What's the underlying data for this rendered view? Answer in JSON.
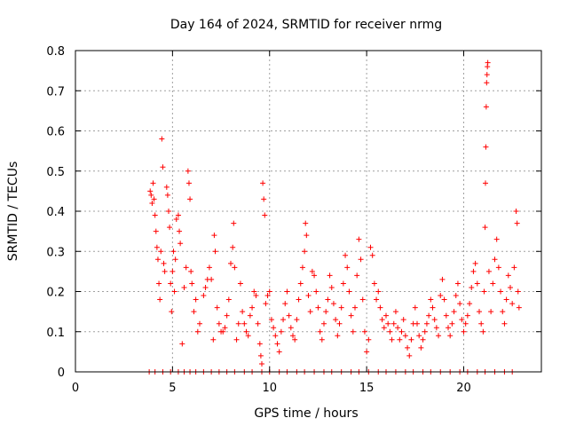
{
  "chart_data": {
    "type": "scatter",
    "title": "Day 164 of 2024, SRMTID for receiver nrmg",
    "xlabel": "GPS time / hours",
    "ylabel": "SRMTID / TECUs",
    "xlim": [
      0,
      24
    ],
    "ylim": [
      0,
      0.8
    ],
    "xticks": [
      "0",
      "5",
      "10",
      "15",
      "20"
    ],
    "xtick_values": [
      0,
      5,
      10,
      15,
      20
    ],
    "yticks": [
      "0",
      "0.1",
      "0.2",
      "0.3",
      "0.4",
      "0.5",
      "0.6",
      "0.7",
      "0.8"
    ],
    "ytick_values": [
      0,
      0.1,
      0.2,
      0.3,
      0.4,
      0.5,
      0.6,
      0.7,
      0.8
    ],
    "grid": true,
    "marker": "+",
    "series": [
      {
        "name": "SRMTID",
        "color": "#ff0000",
        "points": [
          [
            3.85,
            0.45
          ],
          [
            3.9,
            0.44
          ],
          [
            3.95,
            0.42
          ],
          [
            4.0,
            0.47
          ],
          [
            4.05,
            0.43
          ],
          [
            4.1,
            0.39
          ],
          [
            4.15,
            0.35
          ],
          [
            4.2,
            0.31
          ],
          [
            4.25,
            0.28
          ],
          [
            4.3,
            0.22
          ],
          [
            4.35,
            0.18
          ],
          [
            4.4,
            0.3
          ],
          [
            4.45,
            0.58
          ],
          [
            4.5,
            0.51
          ],
          [
            4.55,
            0.27
          ],
          [
            4.6,
            0.25
          ],
          [
            4.7,
            0.46
          ],
          [
            4.75,
            0.44
          ],
          [
            4.8,
            0.4
          ],
          [
            4.85,
            0.36
          ],
          [
            4.9,
            0.22
          ],
          [
            4.95,
            0.15
          ],
          [
            5.0,
            0.25
          ],
          [
            5.05,
            0.3
          ],
          [
            5.1,
            0.2
          ],
          [
            5.15,
            0.28
          ],
          [
            5.2,
            0.38
          ],
          [
            5.3,
            0.39
          ],
          [
            5.35,
            0.35
          ],
          [
            5.4,
            0.32
          ],
          [
            5.5,
            0.07
          ],
          [
            5.6,
            0.21
          ],
          [
            5.7,
            0.26
          ],
          [
            5.8,
            0.5
          ],
          [
            5.85,
            0.47
          ],
          [
            5.9,
            0.43
          ],
          [
            5.95,
            0.25
          ],
          [
            6.0,
            0.22
          ],
          [
            6.1,
            0.15
          ],
          [
            6.2,
            0.18
          ],
          [
            6.3,
            0.1
          ],
          [
            6.4,
            0.12
          ],
          [
            6.6,
            0.19
          ],
          [
            6.7,
            0.21
          ],
          [
            6.8,
            0.23
          ],
          [
            6.9,
            0.26
          ],
          [
            7.0,
            0.23
          ],
          [
            7.1,
            0.08
          ],
          [
            7.15,
            0.34
          ],
          [
            7.2,
            0.3
          ],
          [
            7.3,
            0.16
          ],
          [
            7.4,
            0.12
          ],
          [
            7.5,
            0.1
          ],
          [
            7.6,
            0.1
          ],
          [
            7.7,
            0.11
          ],
          [
            7.8,
            0.14
          ],
          [
            7.9,
            0.18
          ],
          [
            8.0,
            0.27
          ],
          [
            8.1,
            0.31
          ],
          [
            8.15,
            0.37
          ],
          [
            8.2,
            0.26
          ],
          [
            8.3,
            0.08
          ],
          [
            8.4,
            0.12
          ],
          [
            8.5,
            0.22
          ],
          [
            8.6,
            0.15
          ],
          [
            8.7,
            0.12
          ],
          [
            8.8,
            0.1
          ],
          [
            8.9,
            0.09
          ],
          [
            9.0,
            0.14
          ],
          [
            9.1,
            0.16
          ],
          [
            9.2,
            0.2
          ],
          [
            9.3,
            0.19
          ],
          [
            9.4,
            0.12
          ],
          [
            9.5,
            0.07
          ],
          [
            9.55,
            0.04
          ],
          [
            9.6,
            0.02
          ],
          [
            9.65,
            0.47
          ],
          [
            9.7,
            0.43
          ],
          [
            9.75,
            0.39
          ],
          [
            9.8,
            0.17
          ],
          [
            9.9,
            0.19
          ],
          [
            10.0,
            0.2
          ],
          [
            10.1,
            0.13
          ],
          [
            10.2,
            0.11
          ],
          [
            10.3,
            0.09
          ],
          [
            10.4,
            0.07
          ],
          [
            10.5,
            0.05
          ],
          [
            10.6,
            0.1
          ],
          [
            10.7,
            0.13
          ],
          [
            10.8,
            0.17
          ],
          [
            10.9,
            0.2
          ],
          [
            11.0,
            0.14
          ],
          [
            11.1,
            0.11
          ],
          [
            11.2,
            0.09
          ],
          [
            11.3,
            0.08
          ],
          [
            11.4,
            0.13
          ],
          [
            11.5,
            0.18
          ],
          [
            11.6,
            0.22
          ],
          [
            11.7,
            0.26
          ],
          [
            11.8,
            0.3
          ],
          [
            11.85,
            0.37
          ],
          [
            11.9,
            0.34
          ],
          [
            12.0,
            0.19
          ],
          [
            12.1,
            0.15
          ],
          [
            12.2,
            0.25
          ],
          [
            12.3,
            0.24
          ],
          [
            12.4,
            0.2
          ],
          [
            12.5,
            0.16
          ],
          [
            12.6,
            0.1
          ],
          [
            12.7,
            0.08
          ],
          [
            12.8,
            0.12
          ],
          [
            12.9,
            0.15
          ],
          [
            13.0,
            0.18
          ],
          [
            13.1,
            0.24
          ],
          [
            13.2,
            0.21
          ],
          [
            13.3,
            0.17
          ],
          [
            13.4,
            0.13
          ],
          [
            13.5,
            0.09
          ],
          [
            13.6,
            0.12
          ],
          [
            13.7,
            0.16
          ],
          [
            13.8,
            0.22
          ],
          [
            13.9,
            0.29
          ],
          [
            14.0,
            0.26
          ],
          [
            14.1,
            0.2
          ],
          [
            14.2,
            0.14
          ],
          [
            14.3,
            0.1
          ],
          [
            14.4,
            0.16
          ],
          [
            14.5,
            0.24
          ],
          [
            14.6,
            0.33
          ],
          [
            14.7,
            0.28
          ],
          [
            14.8,
            0.18
          ],
          [
            14.9,
            0.1
          ],
          [
            15.0,
            0.05
          ],
          [
            15.1,
            0.08
          ],
          [
            15.2,
            0.31
          ],
          [
            15.3,
            0.29
          ],
          [
            15.4,
            0.22
          ],
          [
            15.5,
            0.18
          ],
          [
            15.6,
            0.2
          ],
          [
            15.7,
            0.16
          ],
          [
            15.8,
            0.13
          ],
          [
            15.9,
            0.11
          ],
          [
            16.0,
            0.14
          ],
          [
            16.1,
            0.12
          ],
          [
            16.2,
            0.1
          ],
          [
            16.3,
            0.08
          ],
          [
            16.4,
            0.12
          ],
          [
            16.5,
            0.15
          ],
          [
            16.6,
            0.11
          ],
          [
            16.7,
            0.08
          ],
          [
            16.8,
            0.1
          ],
          [
            16.9,
            0.13
          ],
          [
            17.0,
            0.09
          ],
          [
            17.1,
            0.06
          ],
          [
            17.2,
            0.04
          ],
          [
            17.3,
            0.08
          ],
          [
            17.4,
            0.12
          ],
          [
            17.5,
            0.16
          ],
          [
            17.6,
            0.12
          ],
          [
            17.7,
            0.09
          ],
          [
            17.8,
            0.06
          ],
          [
            17.9,
            0.08
          ],
          [
            18.0,
            0.1
          ],
          [
            18.1,
            0.12
          ],
          [
            18.2,
            0.14
          ],
          [
            18.3,
            0.18
          ],
          [
            18.4,
            0.16
          ],
          [
            18.5,
            0.13
          ],
          [
            18.6,
            0.11
          ],
          [
            18.7,
            0.09
          ],
          [
            18.8,
            0.19
          ],
          [
            18.9,
            0.23
          ],
          [
            19.0,
            0.18
          ],
          [
            19.1,
            0.14
          ],
          [
            19.2,
            0.11
          ],
          [
            19.3,
            0.09
          ],
          [
            19.4,
            0.12
          ],
          [
            19.5,
            0.15
          ],
          [
            19.6,
            0.19
          ],
          [
            19.7,
            0.22
          ],
          [
            19.8,
            0.17
          ],
          [
            19.9,
            0.13
          ],
          [
            20.0,
            0.1
          ],
          [
            20.1,
            0.12
          ],
          [
            20.2,
            0.14
          ],
          [
            20.3,
            0.17
          ],
          [
            20.4,
            0.21
          ],
          [
            20.5,
            0.25
          ],
          [
            20.6,
            0.27
          ],
          [
            20.7,
            0.22
          ],
          [
            20.8,
            0.15
          ],
          [
            20.9,
            0.12
          ],
          [
            21.0,
            0.1
          ],
          [
            21.05,
            0.2
          ],
          [
            21.1,
            0.36
          ],
          [
            21.12,
            0.47
          ],
          [
            21.14,
            0.56
          ],
          [
            21.16,
            0.66
          ],
          [
            21.18,
            0.72
          ],
          [
            21.2,
            0.74
          ],
          [
            21.22,
            0.76
          ],
          [
            21.24,
            0.77
          ],
          [
            21.3,
            0.25
          ],
          [
            21.4,
            0.15
          ],
          [
            21.5,
            0.22
          ],
          [
            21.6,
            0.28
          ],
          [
            21.7,
            0.33
          ],
          [
            21.8,
            0.26
          ],
          [
            21.9,
            0.2
          ],
          [
            22.0,
            0.15
          ],
          [
            22.1,
            0.12
          ],
          [
            22.2,
            0.18
          ],
          [
            22.3,
            0.24
          ],
          [
            22.4,
            0.21
          ],
          [
            22.5,
            0.17
          ],
          [
            22.6,
            0.26
          ],
          [
            22.7,
            0.4
          ],
          [
            22.75,
            0.37
          ],
          [
            22.8,
            0.2
          ],
          [
            22.85,
            0.16
          ],
          [
            3.8,
            0.0
          ],
          [
            4.1,
            0.0
          ],
          [
            4.5,
            0.0
          ],
          [
            4.9,
            0.0
          ],
          [
            5.3,
            0.0
          ],
          [
            5.6,
            0.0
          ],
          [
            5.9,
            0.0
          ],
          [
            6.2,
            0.0
          ],
          [
            6.6,
            0.0
          ],
          [
            7.0,
            0.0
          ],
          [
            7.4,
            0.0
          ],
          [
            7.8,
            0.0
          ],
          [
            8.2,
            0.0
          ],
          [
            8.7,
            0.0
          ],
          [
            9.1,
            0.0
          ],
          [
            9.6,
            0.0
          ],
          [
            10.0,
            0.0
          ],
          [
            10.5,
            0.0
          ],
          [
            10.9,
            0.0
          ],
          [
            11.4,
            0.0
          ],
          [
            11.8,
            0.0
          ],
          [
            12.3,
            0.0
          ],
          [
            12.8,
            0.0
          ],
          [
            13.2,
            0.0
          ],
          [
            13.7,
            0.0
          ],
          [
            14.2,
            0.0
          ],
          [
            14.6,
            0.0
          ],
          [
            15.1,
            0.0
          ],
          [
            15.6,
            0.0
          ],
          [
            16.0,
            0.0
          ],
          [
            16.5,
            0.0
          ],
          [
            17.0,
            0.0
          ],
          [
            17.4,
            0.0
          ],
          [
            17.9,
            0.0
          ],
          [
            18.3,
            0.0
          ],
          [
            18.8,
            0.0
          ],
          [
            19.3,
            0.0
          ],
          [
            19.8,
            0.0
          ],
          [
            20.2,
            0.0
          ],
          [
            20.7,
            0.0
          ],
          [
            21.1,
            0.0
          ],
          [
            21.6,
            0.0
          ],
          [
            22.1,
            0.0
          ],
          [
            22.5,
            0.0
          ]
        ]
      }
    ]
  }
}
